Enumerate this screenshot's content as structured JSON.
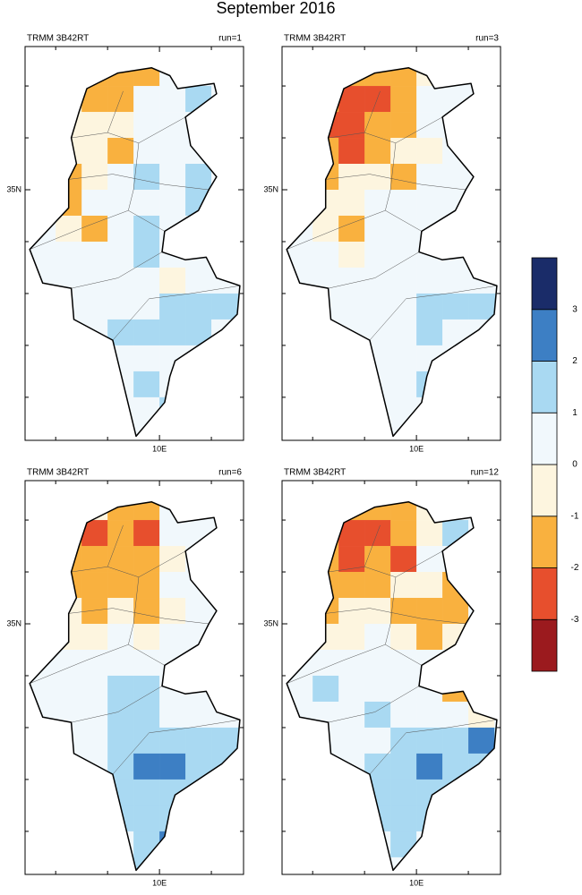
{
  "figure": {
    "title": "September 2016"
  },
  "colorbar": {
    "levels": [
      -3,
      -2,
      -1,
      0,
      1,
      2,
      3
    ],
    "colors": [
      "#9b1a1e",
      "#e74f2d",
      "#f9b13f",
      "#fdf5df",
      "#f1f8fc",
      "#a9d9f2",
      "#3d7fc4",
      "#1a2c69"
    ]
  },
  "chart_data": [
    {
      "type": "grid-map",
      "left_title": "TRMM 3B42RT",
      "right_title": "run=1",
      "xlim": [
        7.41,
        11.62
      ],
      "ylim": [
        30.17,
        37.76
      ],
      "xticks": [
        {
          "value": 10,
          "label": "10E"
        }
      ],
      "yticks": [
        {
          "value": 35,
          "label": "35N"
        }
      ],
      "minor_xticks": [
        8,
        9,
        11
      ],
      "minor_yticks": [
        31,
        32,
        33,
        34,
        36,
        37
      ],
      "xbins": [
        7.5,
        8,
        8.5,
        9,
        9.5,
        10,
        10.5,
        11,
        11.5,
        12
      ],
      "ybins": [
        37.5,
        37,
        36.5,
        36,
        35.5,
        35,
        34.5,
        34,
        33.5,
        33,
        32.5,
        32,
        31.5,
        31,
        30.5,
        30
      ],
      "values": [
        [
          0.5,
          0.5,
          -1.5,
          -1.5,
          -1.5,
          0.5,
          0.5,
          0.5,
          0.5
        ],
        [
          0.5,
          -0.5,
          -1.5,
          -1.5,
          0.5,
          0.5,
          1.5,
          0.5,
          0.5
        ],
        [
          0.5,
          -0.5,
          -0.5,
          -0.5,
          0.5,
          0.5,
          0.5,
          0.5,
          0.5
        ],
        [
          0.5,
          -0.5,
          -0.5,
          -1.5,
          0.5,
          0.5,
          0.5,
          0.5,
          0.5
        ],
        [
          0.5,
          -1.5,
          -0.5,
          0.5,
          1.5,
          0.5,
          1.5,
          0.5,
          0.5
        ],
        [
          0.5,
          -1.5,
          0.5,
          0.5,
          0.5,
          0.5,
          1.5,
          0.5,
          0.5
        ],
        [
          0.5,
          -0.5,
          -1.5,
          0.5,
          1.5,
          0.5,
          0.5,
          0.5,
          0.5
        ],
        [
          0.5,
          0.5,
          0.5,
          0.5,
          1.5,
          0.5,
          0.5,
          0.5,
          0.5
        ],
        [
          0.5,
          0.5,
          0.5,
          0.5,
          0.5,
          -0.5,
          0.5,
          0.5,
          0.5
        ],
        [
          0.5,
          0.5,
          0.5,
          0.5,
          0.5,
          1.5,
          1.5,
          1.5,
          1.5
        ],
        [
          0.5,
          0.5,
          0.5,
          1.5,
          1.5,
          1.5,
          1.5,
          0.5,
          0.5
        ],
        [
          0.5,
          0.5,
          0.5,
          0.5,
          0.5,
          0.5,
          0.5,
          0.5,
          0.5
        ],
        [
          0.5,
          0.5,
          0.5,
          0.5,
          1.5,
          0.5,
          0.5,
          0.5,
          0.5
        ],
        [
          0.5,
          0.5,
          0.5,
          0.5,
          0.5,
          1.5,
          0.5,
          0.5,
          0.5
        ],
        [
          0.5,
          0.5,
          0.5,
          0.5,
          0.5,
          0.5,
          0.5,
          0.5,
          0.5
        ]
      ]
    },
    {
      "type": "grid-map",
      "left_title": "TRMM 3B42RT",
      "right_title": "run=3",
      "xlim": [
        7.41,
        11.62
      ],
      "ylim": [
        30.17,
        37.76
      ],
      "xticks": [
        {
          "value": 10,
          "label": "10E"
        }
      ],
      "yticks": [
        {
          "value": 35,
          "label": "35N"
        }
      ],
      "minor_xticks": [
        8,
        9,
        11
      ],
      "minor_yticks": [
        31,
        32,
        33,
        34,
        36,
        37
      ],
      "xbins": [
        7.5,
        8,
        8.5,
        9,
        9.5,
        10,
        10.5,
        11,
        11.5,
        12
      ],
      "ybins": [
        37.5,
        37,
        36.5,
        36,
        35.5,
        35,
        34.5,
        34,
        33.5,
        33,
        32.5,
        32,
        31.5,
        31,
        30.5,
        30
      ],
      "values": [
        [
          0.5,
          0.5,
          -1.5,
          -1.5,
          -1.5,
          -0.5,
          0.5,
          0.5,
          0.5
        ],
        [
          0.5,
          -1.5,
          -2.5,
          -2.5,
          -1.5,
          0.5,
          0.5,
          0.5,
          0.5
        ],
        [
          0.5,
          -2.5,
          -2.5,
          -1.5,
          -1.5,
          0.5,
          0.5,
          0.5,
          0.5
        ],
        [
          0.5,
          -1.5,
          -2.5,
          -1.5,
          -0.5,
          -0.5,
          0.5,
          0.5,
          0.5
        ],
        [
          0.5,
          -1.5,
          -0.5,
          -0.5,
          -1.5,
          0.5,
          0.5,
          0.5,
          0.5
        ],
        [
          0.5,
          -0.5,
          -0.5,
          0.5,
          0.5,
          0.5,
          0.5,
          0.5,
          0.5
        ],
        [
          0.5,
          -0.5,
          -1.5,
          0.5,
          0.5,
          0.5,
          0.5,
          0.5,
          0.5
        ],
        [
          0.5,
          0.5,
          -0.5,
          0.5,
          0.5,
          0.5,
          0.5,
          0.5,
          0.5
        ],
        [
          0.5,
          0.5,
          0.5,
          0.5,
          0.5,
          0.5,
          0.5,
          0.5,
          0.5
        ],
        [
          0.5,
          0.5,
          0.5,
          0.5,
          0.5,
          1.5,
          1.5,
          1.5,
          1.5
        ],
        [
          0.5,
          0.5,
          0.5,
          0.5,
          0.5,
          1.5,
          0.5,
          0.5,
          0.5
        ],
        [
          0.5,
          0.5,
          0.5,
          0.5,
          0.5,
          0.5,
          0.5,
          0.5,
          0.5
        ],
        [
          0.5,
          0.5,
          0.5,
          0.5,
          0.5,
          1.5,
          0.5,
          0.5,
          0.5
        ],
        [
          0.5,
          0.5,
          0.5,
          0.5,
          0.5,
          0.5,
          0.5,
          0.5,
          0.5
        ],
        [
          0.5,
          0.5,
          0.5,
          0.5,
          0.5,
          0.5,
          0.5,
          0.5,
          0.5
        ]
      ]
    },
    {
      "type": "grid-map",
      "left_title": "TRMM 3B42RT",
      "right_title": "run=6",
      "xlim": [
        7.41,
        11.62
      ],
      "ylim": [
        30.17,
        37.76
      ],
      "xticks": [
        {
          "value": 10,
          "label": "10E"
        }
      ],
      "yticks": [
        {
          "value": 35,
          "label": "35N"
        }
      ],
      "minor_xticks": [
        8,
        9,
        11
      ],
      "minor_yticks": [
        31,
        32,
        33,
        34,
        36,
        37
      ],
      "xbins": [
        7.5,
        8,
        8.5,
        9,
        9.5,
        10,
        10.5,
        11,
        11.5,
        12
      ],
      "ybins": [
        37.5,
        37,
        36.5,
        36,
        35.5,
        35,
        34.5,
        34,
        33.5,
        33,
        32.5,
        32,
        31.5,
        31,
        30.5,
        30
      ],
      "values": [
        [
          0.5,
          0.5,
          -0.5,
          -1.5,
          -1.5,
          0.5,
          0.5,
          0.5,
          0.5
        ],
        [
          0.5,
          -1.5,
          -2.5,
          -1.5,
          -2.5,
          0.5,
          0.5,
          0.5,
          0.5
        ],
        [
          0.5,
          -1.5,
          -1.5,
          -1.5,
          -1.5,
          -0.5,
          0.5,
          0.5,
          0.5
        ],
        [
          0.5,
          -1.5,
          -1.5,
          -1.5,
          -1.5,
          0.5,
          0.5,
          0.5,
          0.5
        ],
        [
          0.5,
          -0.5,
          -1.5,
          -0.5,
          -1.5,
          -0.5,
          0.5,
          0.5,
          0.5
        ],
        [
          0.5,
          -0.5,
          -0.5,
          0.5,
          -0.5,
          0.5,
          0.5,
          0.5,
          0.5
        ],
        [
          0.5,
          0.5,
          0.5,
          0.5,
          0.5,
          0.5,
          0.5,
          0.5,
          0.5
        ],
        [
          0.5,
          0.5,
          0.5,
          1.5,
          1.5,
          0.5,
          0.5,
          0.5,
          0.5
        ],
        [
          0.5,
          0.5,
          0.5,
          1.5,
          1.5,
          0.5,
          0.5,
          0.5,
          0.5
        ],
        [
          0.5,
          0.5,
          0.5,
          1.5,
          1.5,
          1.5,
          1.5,
          1.5,
          1.5
        ],
        [
          0.5,
          0.5,
          0.5,
          1.5,
          2.5,
          2.5,
          1.5,
          1.5,
          0.5
        ],
        [
          0.5,
          0.5,
          0.5,
          1.5,
          1.5,
          1.5,
          1.5,
          0.5,
          0.5
        ],
        [
          0.5,
          0.5,
          0.5,
          1.5,
          1.5,
          1.5,
          0.5,
          0.5,
          0.5
        ],
        [
          0.5,
          0.5,
          0.5,
          0.5,
          1.5,
          2.5,
          0.5,
          0.5,
          0.5
        ],
        [
          0.5,
          0.5,
          0.5,
          0.5,
          1.5,
          1.5,
          0.5,
          0.5,
          0.5
        ]
      ]
    },
    {
      "type": "grid-map",
      "left_title": "TRMM 3B42RT",
      "right_title": "run=12",
      "xlim": [
        7.41,
        11.62
      ],
      "ylim": [
        30.17,
        37.76
      ],
      "xticks": [
        {
          "value": 10,
          "label": "10E"
        }
      ],
      "yticks": [
        {
          "value": 35,
          "label": "35N"
        }
      ],
      "minor_xticks": [
        8,
        9,
        11
      ],
      "minor_yticks": [
        31,
        32,
        33,
        34,
        36,
        37
      ],
      "xbins": [
        7.5,
        8,
        8.5,
        9,
        9.5,
        10,
        10.5,
        11,
        11.5,
        12
      ],
      "ybins": [
        37.5,
        37,
        36.5,
        36,
        35.5,
        35,
        34.5,
        34,
        33.5,
        33,
        32.5,
        32,
        31.5,
        31,
        30.5,
        30
      ],
      "values": [
        [
          0.5,
          0.5,
          -1.5,
          -1.5,
          -1.5,
          -0.5,
          0.5,
          0.5,
          0.5
        ],
        [
          0.5,
          -1.5,
          -2.5,
          -2.5,
          -1.5,
          -0.5,
          1.5,
          0.5,
          0.5
        ],
        [
          0.5,
          -1.5,
          -2.5,
          -1.5,
          -2.5,
          0.5,
          0.5,
          0.5,
          0.5
        ],
        [
          0.5,
          -1.5,
          -1.5,
          -1.5,
          -0.5,
          -0.5,
          -1.5,
          0.5,
          0.5
        ],
        [
          0.5,
          -1.5,
          -0.5,
          -0.5,
          -1.5,
          -1.5,
          -1.5,
          0.5,
          0.5
        ],
        [
          0.5,
          -0.5,
          -0.5,
          0.5,
          -0.5,
          -1.5,
          -0.5,
          0.5,
          0.5
        ],
        [
          0.5,
          0.5,
          0.5,
          0.5,
          0.5,
          0.5,
          0.5,
          0.5,
          0.5
        ],
        [
          0.5,
          1.5,
          0.5,
          0.5,
          0.5,
          0.5,
          -1.5,
          -0.5,
          0.5
        ],
        [
          0.5,
          0.5,
          0.5,
          1.5,
          0.5,
          0.5,
          0.5,
          -0.5,
          0.5
        ],
        [
          0.5,
          0.5,
          0.5,
          0.5,
          1.5,
          1.5,
          1.5,
          2.5,
          1.5
        ],
        [
          0.5,
          0.5,
          0.5,
          1.5,
          1.5,
          2.5,
          1.5,
          1.5,
          0.5
        ],
        [
          0.5,
          0.5,
          0.5,
          1.5,
          1.5,
          1.5,
          1.5,
          0.5,
          0.5
        ],
        [
          0.5,
          0.5,
          0.5,
          1.5,
          1.5,
          1.5,
          0.5,
          0.5,
          0.5
        ],
        [
          0.5,
          0.5,
          0.5,
          0.5,
          1.5,
          0.5,
          0.5,
          0.5,
          0.5
        ],
        [
          0.5,
          0.5,
          0.5,
          0.5,
          0.5,
          0.5,
          0.5,
          0.5,
          0.5
        ]
      ]
    }
  ]
}
